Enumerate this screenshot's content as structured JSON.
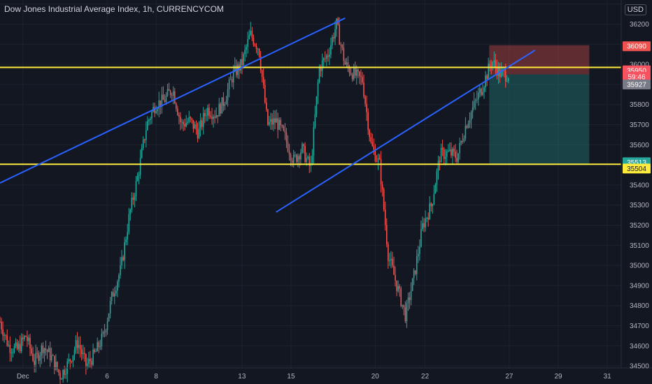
{
  "header": {
    "title": "Dow Jones Industrial Average Index, 1h, CURRENCYCOM",
    "currency": "USD"
  },
  "colors": {
    "background": "#131722",
    "grid": "#1e222d",
    "up": "#26a69a",
    "down": "#ef5350",
    "trend": "#2962ff",
    "level": "#ffeb3b",
    "risk": "#ef5350",
    "reward": "#26a69a"
  },
  "chart_data": {
    "type": "candlestick",
    "price_axis": {
      "ticks": [
        34500,
        34600,
        34700,
        34800,
        34900,
        35000,
        35100,
        35200,
        35300,
        35400,
        35500,
        35600,
        35700,
        35800,
        35900,
        36000,
        36100,
        36200,
        36300
      ],
      "labels": [
        "34500",
        "34600",
        "34700",
        "34800",
        "34900",
        "35000",
        "35100",
        "35200",
        "35300",
        "35400",
        "",
        "35600",
        "35700",
        "35800",
        "",
        "36000",
        "",
        "36200",
        ""
      ]
    },
    "time_axis": {
      "labels": [
        "Dec",
        "6",
        "8",
        "13",
        "15",
        "20",
        "22",
        "27",
        "29",
        "31"
      ]
    },
    "badges": [
      {
        "label": "36090",
        "price": 36090,
        "bg": "#ef5350",
        "fg": "#ffffff"
      },
      {
        "label": "35950",
        "price": 35970,
        "bg": "#f7525f",
        "fg": "#ffffff"
      },
      {
        "label": "59:46",
        "price": 35938,
        "bg": "#f7525f",
        "fg": "#ffffff"
      },
      {
        "label": "35927",
        "price": 35900,
        "bg": "#787b86",
        "fg": "#ffffff"
      },
      {
        "label": "35513",
        "price": 35513,
        "bg": "#26a69a",
        "fg": "#ffffff"
      },
      {
        "label": "35504",
        "price": 35482,
        "bg": "#ffeb3b",
        "fg": "#131722"
      }
    ],
    "horizontal_levels": [
      35985,
      35503
    ],
    "trend_lines": [
      {
        "from": {
          "t": 0,
          "p": 35410
        },
        "to": {
          "t": 40,
          "p": 36230
        }
      },
      {
        "from": {
          "t": 32,
          "p": 35265
        },
        "to": {
          "t": 62,
          "p": 36070
        }
      }
    ],
    "position": {
      "entry": 35950,
      "stop": 36095,
      "target": 35503,
      "t_start": 56.7,
      "t_end": 68.3
    },
    "price_path": [
      [
        0,
        34720
      ],
      [
        1,
        34600
      ],
      [
        2,
        34580
      ],
      [
        3,
        34650
      ],
      [
        4,
        34520
      ],
      [
        5,
        34600
      ],
      [
        6,
        34540
      ],
      [
        7,
        34450
      ],
      [
        8,
        34520
      ],
      [
        9,
        34620
      ],
      [
        10,
        34500
      ],
      [
        11,
        34560
      ],
      [
        12,
        34650
      ],
      [
        13,
        34850
      ],
      [
        14,
        34980
      ],
      [
        15,
        35250
      ],
      [
        16,
        35450
      ],
      [
        17,
        35700
      ],
      [
        18,
        35800
      ],
      [
        19,
        35820
      ],
      [
        20,
        35880
      ],
      [
        21,
        35700
      ],
      [
        22,
        35720
      ],
      [
        23,
        35660
      ],
      [
        24,
        35780
      ],
      [
        25,
        35750
      ],
      [
        26,
        35820
      ],
      [
        27,
        35950
      ],
      [
        28,
        36000
      ],
      [
        29,
        36150
      ],
      [
        30,
        36080
      ],
      [
        31,
        35700
      ],
      [
        32,
        35720
      ],
      [
        33,
        35640
      ],
      [
        34,
        35520
      ],
      [
        35,
        35580
      ],
      [
        36,
        35480
      ],
      [
        37,
        35980
      ],
      [
        38,
        36050
      ],
      [
        39,
        36200
      ],
      [
        40,
        36000
      ],
      [
        41,
        35950
      ],
      [
        42,
        35920
      ],
      [
        43,
        35600
      ],
      [
        44,
        35500
      ],
      [
        45,
        35050
      ],
      [
        46,
        34900
      ],
      [
        47,
        34750
      ],
      [
        48,
        34950
      ],
      [
        49,
        35200
      ],
      [
        50,
        35300
      ],
      [
        51,
        35550
      ],
      [
        52,
        35560
      ],
      [
        53,
        35540
      ],
      [
        54,
        35700
      ],
      [
        55,
        35800
      ],
      [
        56,
        35900
      ],
      [
        57,
        36020
      ],
      [
        58,
        35950
      ],
      [
        59,
        35950
      ]
    ],
    "time_range": [
      0,
      72
    ],
    "price_range": [
      34490,
      36320
    ]
  }
}
